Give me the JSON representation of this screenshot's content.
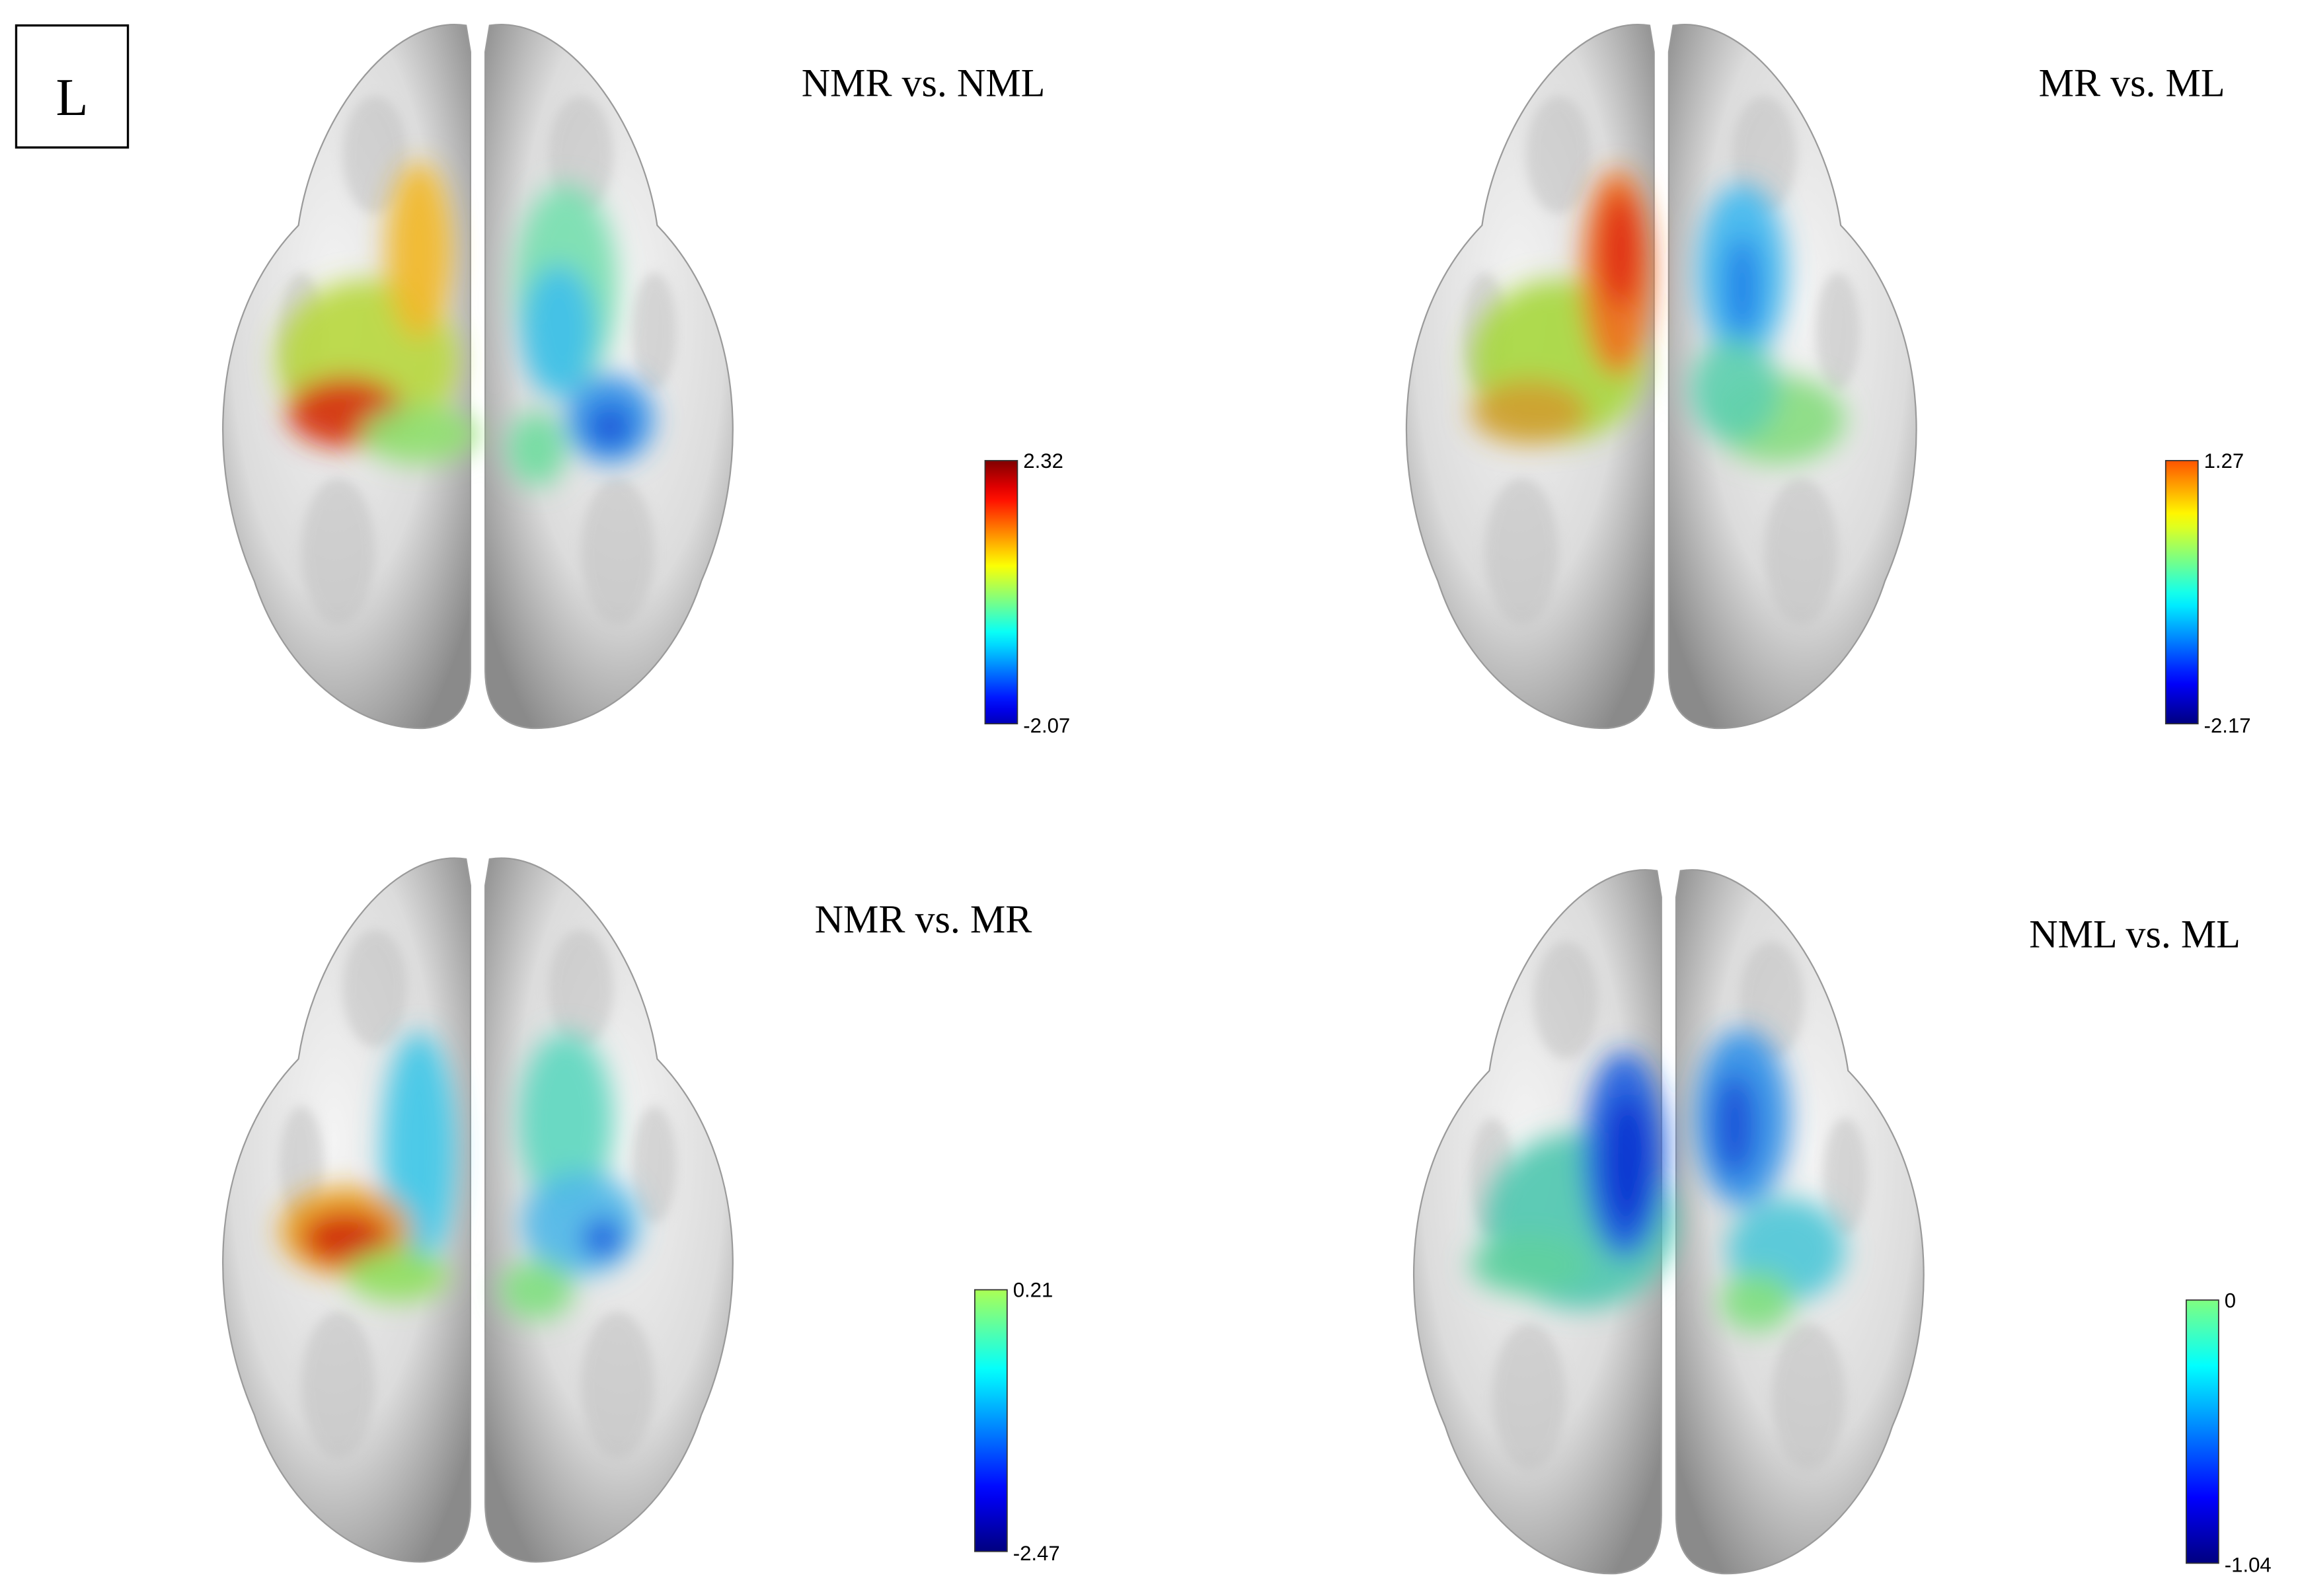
{
  "label": "L",
  "panels": [
    {
      "title": "NMR vs. NML",
      "colorbar": {
        "max": 2.32,
        "min": -2.07
      }
    },
    {
      "title": "MR vs. ML",
      "colorbar": {
        "max": 1.27,
        "min": -2.17
      }
    },
    {
      "title": "NMR vs. MR",
      "colorbar": {
        "max": 0.21,
        "min": -2.47
      }
    },
    {
      "title": "NML vs. ML",
      "colorbar": {
        "max": 0,
        "min": -1.04
      }
    }
  ]
}
